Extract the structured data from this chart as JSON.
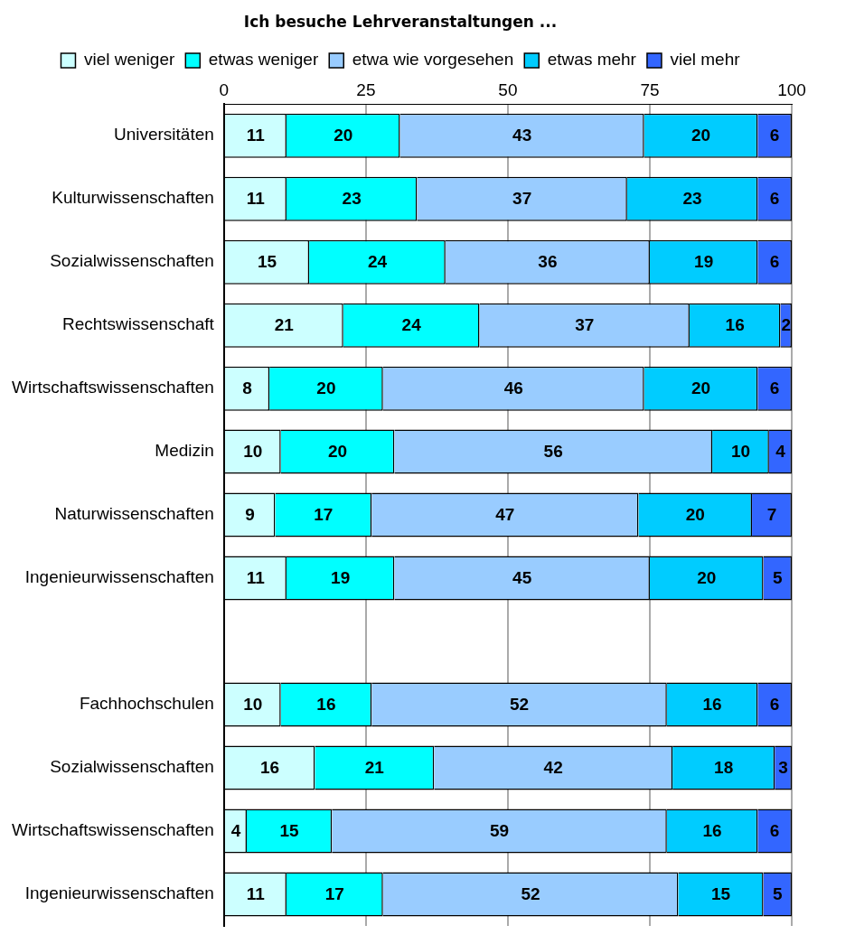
{
  "chart_data": {
    "type": "bar",
    "orientation": "horizontal",
    "stacked": true,
    "title": "Ich besuche Lehrveranstaltungen ...",
    "categories": [
      "Universitäten",
      "Kulturwissenschaften",
      "Sozialwissenschaften",
      "Rechtswissenschaft",
      "Wirtschaftswissenschaften",
      "Medizin",
      "Naturwissenschaften",
      "Ingenieurwissenschaften",
      null,
      "Fachhochschulen",
      "Sozialwissenschaften",
      "Wirtschaftswissenschaften",
      "Ingenieurwissenschaften"
    ],
    "series": [
      {
        "name": "viel weniger",
        "color": "#ccffff",
        "values": [
          11,
          11,
          15,
          21,
          8,
          10,
          9,
          11,
          null,
          10,
          16,
          4,
          11
        ]
      },
      {
        "name": "etwas weniger",
        "color": "#00ffff",
        "values": [
          20,
          23,
          24,
          24,
          20,
          20,
          17,
          19,
          null,
          16,
          21,
          15,
          17
        ]
      },
      {
        "name": "etwa wie vorgesehen",
        "color": "#99ccff",
        "values": [
          43,
          37,
          36,
          37,
          46,
          56,
          47,
          45,
          null,
          52,
          42,
          59,
          52
        ]
      },
      {
        "name": "etwas mehr",
        "color": "#00ccff",
        "values": [
          20,
          23,
          19,
          16,
          20,
          10,
          20,
          20,
          null,
          16,
          18,
          16,
          15
        ]
      },
      {
        "name": "viel mehr",
        "color": "#3366ff",
        "values": [
          6,
          6,
          6,
          2,
          6,
          4,
          7,
          5,
          null,
          6,
          3,
          6,
          5
        ]
      }
    ],
    "xlim": [
      0,
      100
    ],
    "xticks": [
      0,
      25,
      50,
      75,
      100
    ],
    "grid": "x",
    "legend": "top",
    "data_labels": true
  }
}
